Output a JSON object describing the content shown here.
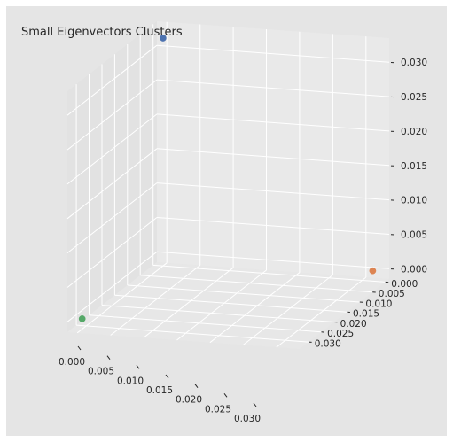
{
  "chart_data": {
    "type": "scatter",
    "projection": "3d",
    "title": "Small Eigenvectors Clusters",
    "xlabel": "",
    "ylabel": "",
    "zlabel": "",
    "grid": true,
    "xlim": [
      -0.0015,
      0.0335
    ],
    "ylim": [
      -0.0015,
      0.0335
    ],
    "zlim": [
      -0.0015,
      0.0335
    ],
    "xticks": [
      "0.000",
      "0.005",
      "0.010",
      "0.015",
      "0.020",
      "0.025",
      "0.030"
    ],
    "yticks": [
      "0.000",
      "0.005",
      "0.010",
      "0.015",
      "0.020",
      "0.025",
      "0.030"
    ],
    "zticks": [
      "0.000",
      "0.005",
      "0.010",
      "0.015",
      "0.020",
      "0.025",
      "0.030"
    ],
    "points": [
      {
        "x": 0.0,
        "y": 0.0,
        "z": 0.0316,
        "color": "#4c72b0"
      },
      {
        "x": 0.0,
        "y": 0.0316,
        "z": 0.0,
        "color": "#dd8452"
      },
      {
        "x": 0.0316,
        "y": 0.0,
        "z": 0.0,
        "color": "#55a868"
      }
    ]
  }
}
